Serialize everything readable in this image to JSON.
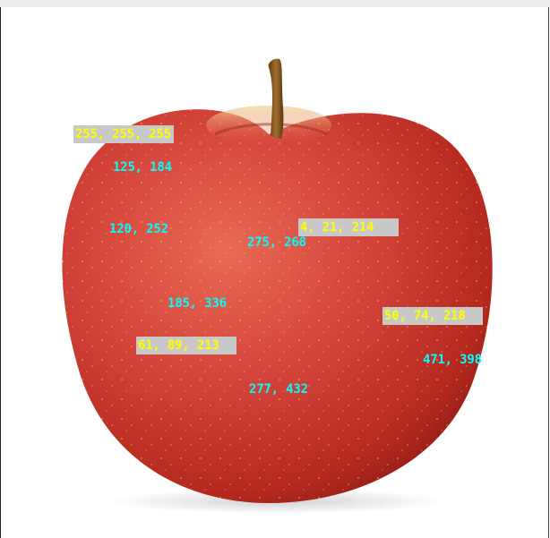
{
  "image": {
    "subject": "apple",
    "colors": {
      "apple_main": "#d5443a",
      "apple_dark": "#a5221d",
      "apple_highlight": "#e86a55",
      "stem": "#8a5a22",
      "yellow_label_text": "#ffff00",
      "yellow_label_bg": "#c8c8c8",
      "cyan_label_text": "#00ffff"
    }
  },
  "color_labels": [
    "255, 255, 255",
    "4, 21, 214",
    "50, 74, 218",
    "61, 89, 213"
  ],
  "coordinate_labels": [
    "125, 184",
    "120, 252",
    "275, 268",
    "185, 336",
    "471, 398",
    "277, 432"
  ]
}
